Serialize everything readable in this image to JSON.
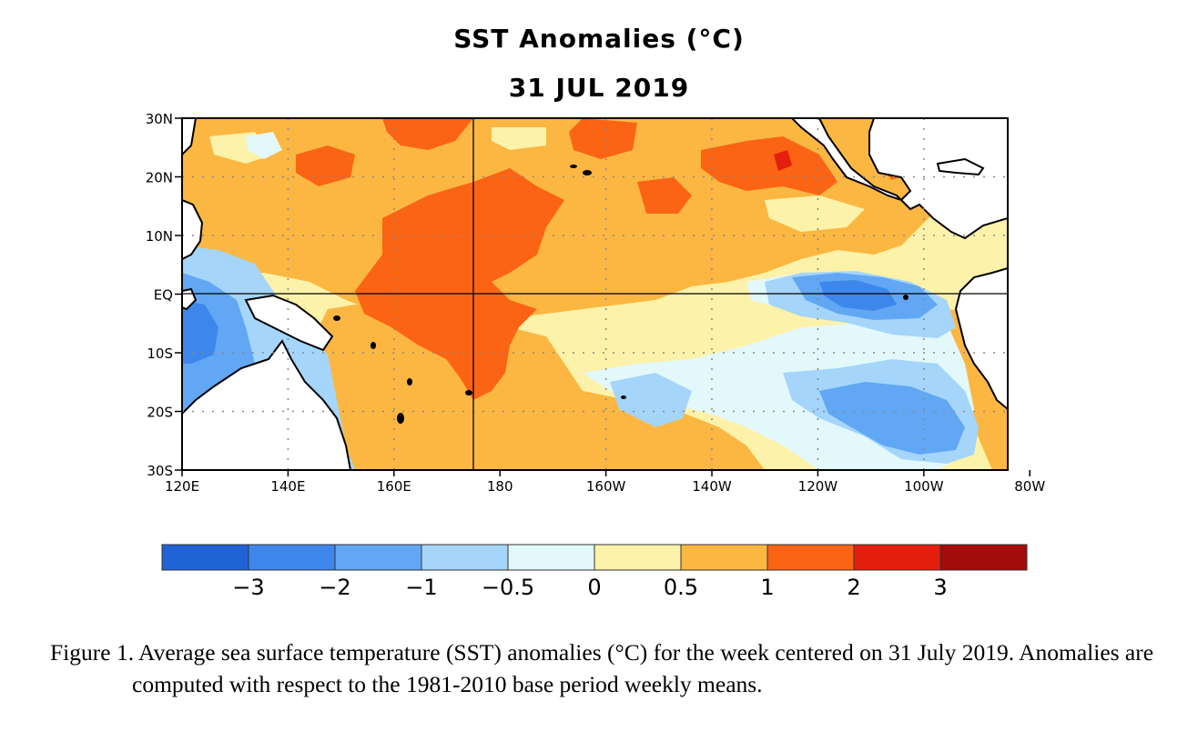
{
  "title": "SST Anomalies (°C)",
  "date": "31 JUL 2019",
  "lat_labels": [
    "30N",
    "20N",
    "10N",
    "EQ",
    "10S",
    "20S",
    "30S"
  ],
  "lon_labels": [
    "120E",
    "140E",
    "160E",
    "180",
    "160W",
    "140W",
    "120W",
    "100W",
    "80W"
  ],
  "colorbar": {
    "bins": [
      {
        "color": "#1f63d6"
      },
      {
        "color": "#3d87ec"
      },
      {
        "color": "#62a7f3"
      },
      {
        "color": "#a5d5fa"
      },
      {
        "color": "#e2f8fb"
      },
      {
        "color": "#fdf2a9"
      },
      {
        "color": "#fbb742"
      },
      {
        "color": "#fb6415"
      },
      {
        "color": "#e41f0e"
      },
      {
        "color": "#a40b0b"
      }
    ],
    "tick_labels": [
      "−3",
      "−2",
      "−1",
      "−0.5",
      "0",
      "0.5",
      "1",
      "2",
      "3"
    ]
  },
  "caption": "Figure 1. Average sea surface temperature (SST) anomalies (°C) for the week centered on 31 July 2019.  Anomalies are computed with respect to the 1981-2010 base period weekly means."
}
